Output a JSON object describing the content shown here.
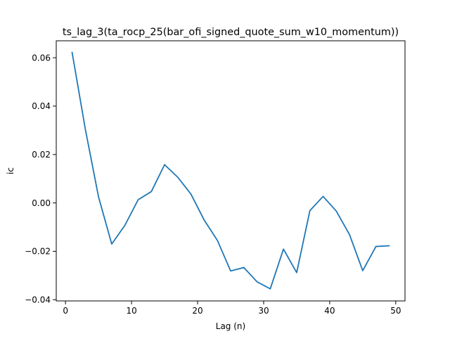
{
  "chart_data": {
    "type": "line",
    "title": "ts_lag_3(ta_rocp_25(bar_ofi_signed_quote_sum_w10_momentum))",
    "xlabel": "Lag (n)",
    "ylabel": "ic",
    "xlim": [
      -1.4,
      51.4
    ],
    "ylim": [
      -0.0405,
      0.067
    ],
    "xticks": [
      0,
      10,
      20,
      30,
      40,
      50
    ],
    "xtick_labels": [
      "0",
      "10",
      "20",
      "30",
      "40",
      "50"
    ],
    "yticks": [
      -0.04,
      -0.02,
      0.0,
      0.02,
      0.04,
      0.06
    ],
    "ytick_labels": [
      "−0.04",
      "−0.02",
      "0.00",
      "0.02",
      "0.04",
      "0.06"
    ],
    "grid": false,
    "series": [
      {
        "color": "#1f77b4",
        "x": [
          1,
          3,
          5,
          7,
          9,
          11,
          13,
          15,
          17,
          19,
          21,
          23,
          25,
          27,
          29,
          31,
          33,
          35,
          37,
          39,
          41,
          43,
          45,
          47,
          49
        ],
        "y": [
          0.0622,
          0.0305,
          0.0025,
          -0.017,
          -0.0092,
          0.0013,
          0.0047,
          0.0158,
          0.0106,
          0.0036,
          -0.0071,
          -0.0155,
          -0.0281,
          -0.0267,
          -0.0326,
          -0.0355,
          -0.0191,
          -0.0288,
          -0.0032,
          0.0027,
          -0.0034,
          -0.0131,
          -0.028,
          -0.018,
          -0.0177
        ]
      }
    ]
  }
}
